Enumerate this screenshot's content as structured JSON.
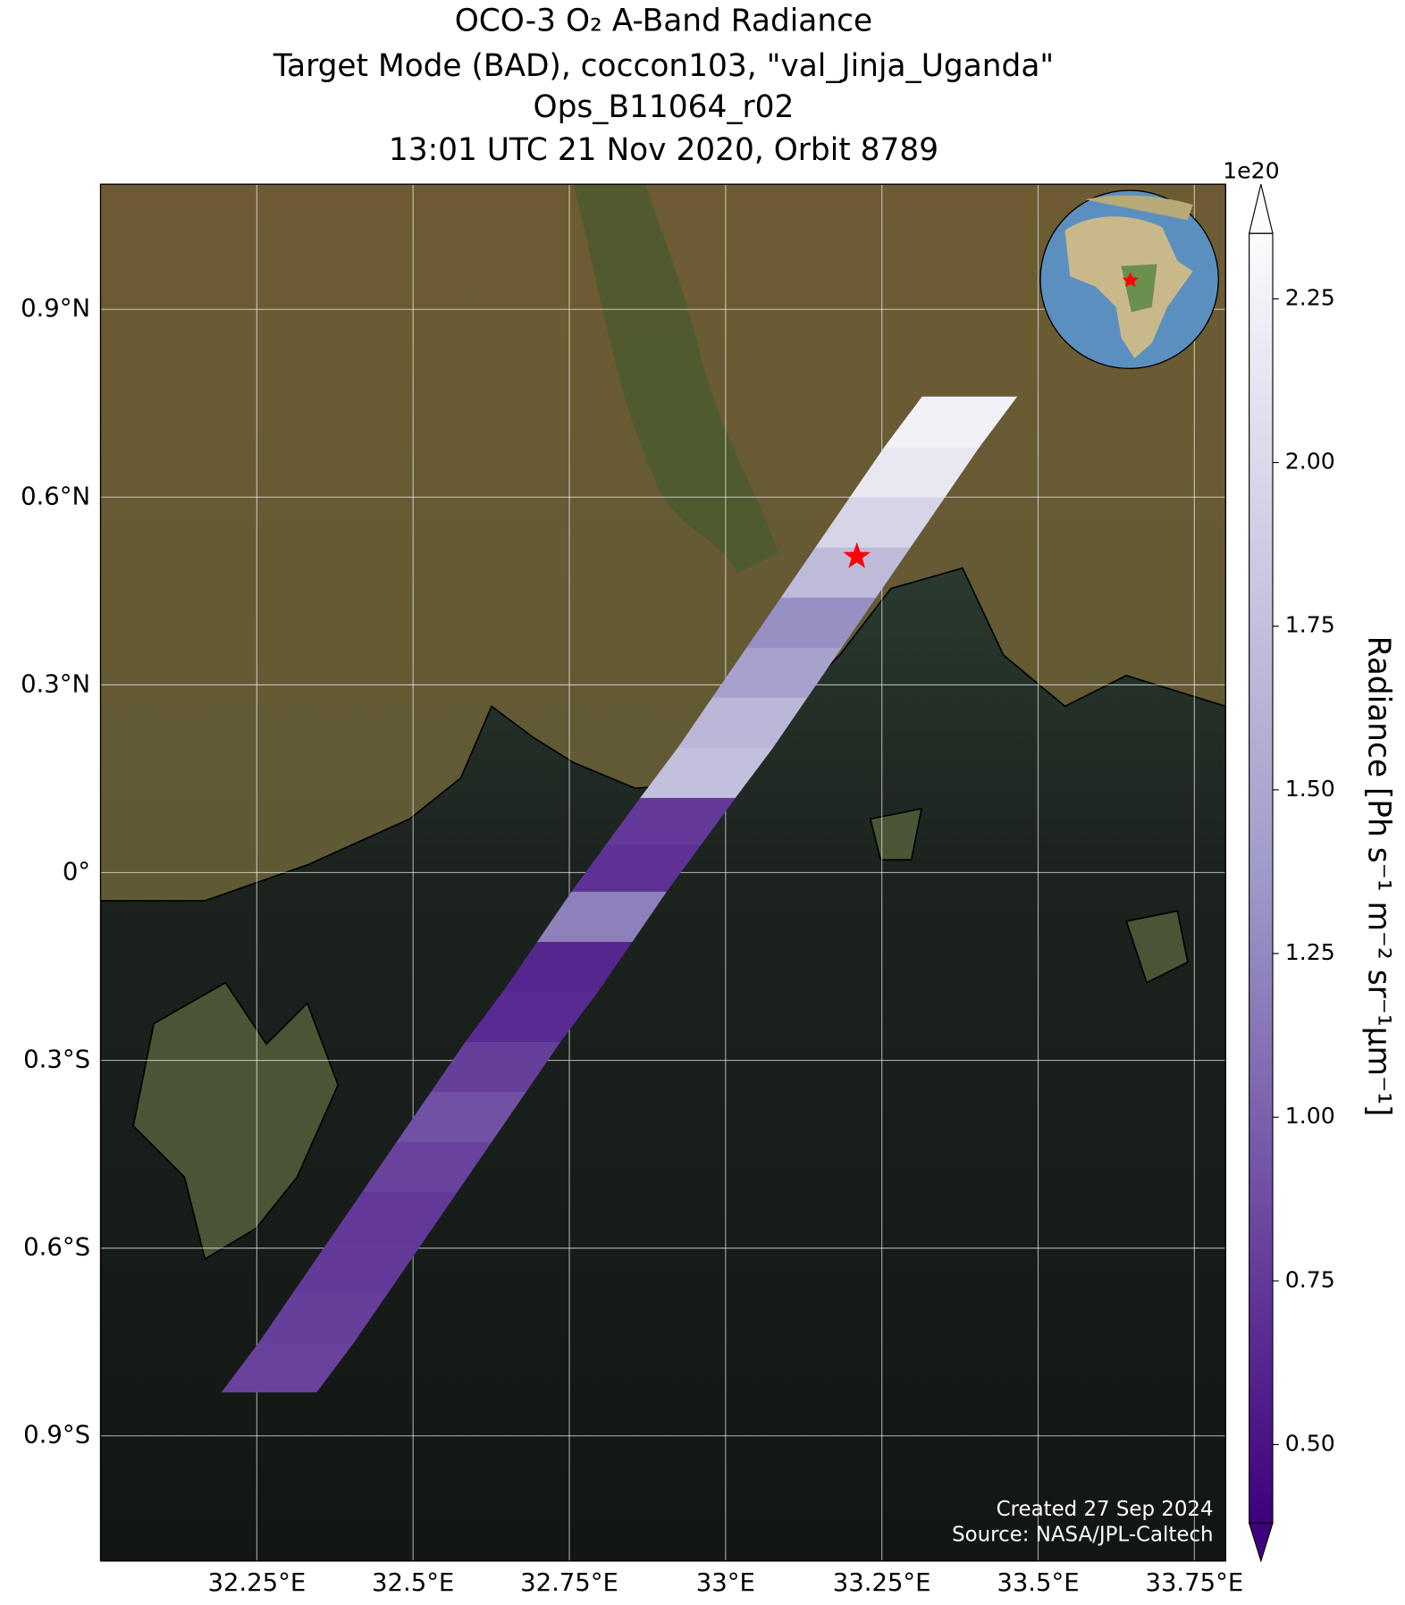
{
  "chart_data": {
    "type": "swath-map",
    "title": [
      "OCO-3 O₂ A-Band Radiance",
      "Target Mode (BAD), coccon103, \"val_Jinja_Uganda\"",
      "Ops_B11064_r02",
      "13:01 UTC 21 Nov 2020, Orbit 8789"
    ],
    "xlim": [
      32.0,
      33.8
    ],
    "ylim": [
      -1.1,
      1.1
    ],
    "xticks": [
      {
        "value": 32.25,
        "label": "32.25°E"
      },
      {
        "value": 32.5,
        "label": "32.5°E"
      },
      {
        "value": 32.75,
        "label": "32.75°E"
      },
      {
        "value": 33,
        "label": "33°E"
      },
      {
        "value": 33.25,
        "label": "33.25°E"
      },
      {
        "value": 33.5,
        "label": "33.5°E"
      },
      {
        "value": 33.75,
        "label": "33.75°E"
      }
    ],
    "yticks": [
      {
        "value": 0.9,
        "label": "0.9°N"
      },
      {
        "value": 0.6,
        "label": "0.6°N"
      },
      {
        "value": 0.3,
        "label": "0.3°N"
      },
      {
        "value": 0,
        "label": "0°"
      },
      {
        "value": -0.3,
        "label": "0.3°S"
      },
      {
        "value": -0.6,
        "label": "0.6°S"
      },
      {
        "value": -0.9,
        "label": "0.9°S"
      }
    ],
    "grid": true,
    "lon": [
      32.3,
      32.36,
      32.41,
      32.47,
      32.52,
      32.58,
      32.63,
      32.69,
      32.75,
      32.8,
      32.86,
      32.91,
      32.97,
      33.03,
      33.08,
      33.14,
      33.19,
      33.25,
      33.3,
      33.36
    ],
    "lat": [
      -0.79,
      -0.71,
      -0.63,
      -0.55,
      -0.47,
      -0.39,
      -0.31,
      -0.23,
      -0.15,
      -0.07,
      0.01,
      0.08,
      0.16,
      0.24,
      0.32,
      0.4,
      0.48,
      0.56,
      0.64,
      0.72
    ],
    "values": [
      0.8,
      0.78,
      0.75,
      0.74,
      0.8,
      0.9,
      0.78,
      0.65,
      0.62,
      1.2,
      0.7,
      0.75,
      1.75,
      1.65,
      1.45,
      1.3,
      1.7,
      1.95,
      2.15,
      2.25
    ],
    "target": {
      "lon": 33.21,
      "lat": 0.505,
      "color": "#ff0000"
    },
    "colorbar": {
      "label": "Radiance [Ph s⁻¹ m⁻² sr⁻¹μm⁻¹]",
      "multiplier": "1e20",
      "lim": [
        0.38,
        2.35
      ],
      "ticks": [
        {
          "value": 0.5,
          "label": "0.50"
        },
        0.75,
        {
          "value": 1,
          "label": "1.00"
        },
        1.25,
        {
          "value": 1.5,
          "label": "1.50"
        },
        1.75,
        {
          "value": 2,
          "label": "2.00"
        },
        2.25
      ],
      "colors": [
        "#3f007d",
        "#9e9ac8",
        "#fcfbfd"
      ]
    },
    "annotations": [
      "Created 27 Sep 2024",
      "Source: NASA/JPL-Caltech"
    ]
  }
}
